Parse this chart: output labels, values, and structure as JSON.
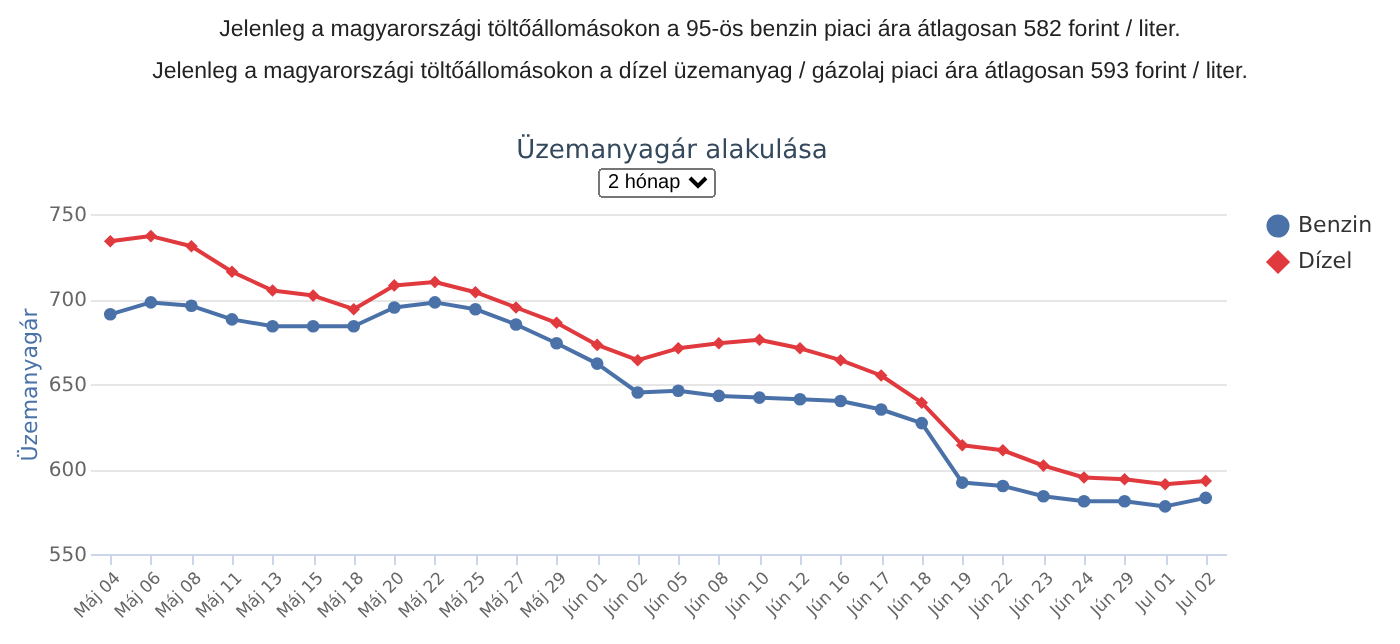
{
  "chart_data": {
    "type": "line",
    "title": "Üzemanyagár alakulása",
    "ylabel": "Üzemanyagár",
    "annotations": [
      "Jelenleg a magyarországi töltőállomásokon a 95-ös benzin piaci ára átlagosan 582 forint / liter.",
      "Jelenleg a magyarországi töltőállomásokon a dízel üzemanyag / gázolaj piaci ára átlagosan 593 forint / liter.",
      "2 hónap"
    ],
    "categories": [
      "Máj 04",
      "Máj 06",
      "Máj 08",
      "Máj 11",
      "Máj 13",
      "Máj 15",
      "Máj 18",
      "Máj 20",
      "Máj 22",
      "Máj 25",
      "Máj 27",
      "Máj 29",
      "Jún 01",
      "Jún 02",
      "Jún 05",
      "Jún 08",
      "Jún 10",
      "Jún 12",
      "Jún 16",
      "Jún 17",
      "Jún 18",
      "Jún 19",
      "Jún 22",
      "Jún 23",
      "Jún 24",
      "Jún 29",
      "Jul 01",
      "Jul 02"
    ],
    "series": [
      {
        "name": "Benzin",
        "color": "#4a72a8",
        "marker": "circle",
        "values": [
          691,
          698,
          696,
          688,
          684,
          684,
          684,
          695,
          698,
          694,
          685,
          674,
          662,
          645,
          646,
          643,
          642,
          641,
          640,
          635,
          627,
          592,
          590,
          584,
          581,
          581,
          578,
          583
        ]
      },
      {
        "name": "Dízel",
        "color": "#e0393e",
        "marker": "diamond",
        "values": [
          734,
          737,
          731,
          716,
          705,
          702,
          694,
          708,
          710,
          704,
          695,
          686,
          673,
          664,
          671,
          674,
          676,
          671,
          664,
          655,
          639,
          614,
          611,
          602,
          595,
          594,
          591,
          593
        ]
      }
    ],
    "ylim": [
      550,
      750
    ],
    "yticks": [
      550,
      600,
      650,
      700,
      750
    ],
    "grid": "y",
    "legend": "right",
    "marker": "circle",
    "line_style": "solid"
  }
}
